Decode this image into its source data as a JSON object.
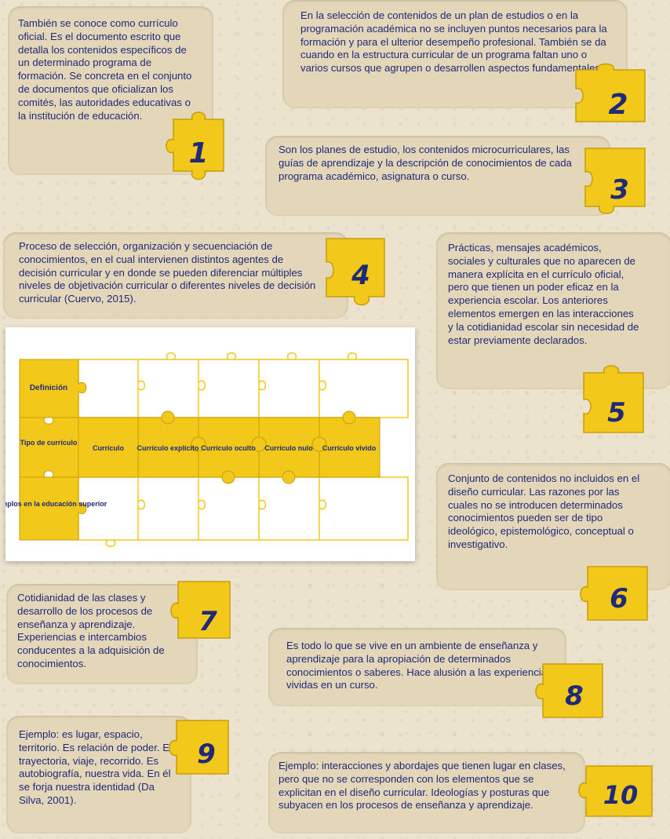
{
  "colors": {
    "card": "#e3d6b9",
    "piece": "#f2c81b",
    "piece_edge": "#c89e0a",
    "text": "#1f2a78",
    "grid_line": "#f2c81b"
  },
  "cards": [
    {
      "number": "1",
      "text": "También se conoce como currículo oficial. Es el documento escrito que detalla los contenidos específicos de un determinado programa de formación. Se concreta en el conjunto de documentos que oficializan los comités, las autoridades educativas o la institución de educación."
    },
    {
      "number": "2",
      "text": "En la selección de contenidos de un plan de estudios o en la programación académica no se incluyen puntos necesarios para la formación y para el ulterior desempeño profesional. También se da cuando en la estructura curricular de un programa faltan uno o varios cursos que agrupen o desarrollen aspectos fundamentales."
    },
    {
      "number": "3",
      "text": "Son los planes de estudio, los contenidos microcurriculares, las guías de aprendizaje y la descripción de conocimientos de cada programa académico, asignatura o curso."
    },
    {
      "number": "4",
      "text": "Proceso de selección, organización y secuenciación de conocimientos, en el cual intervienen distintos agentes de decisión curricular y en donde se pueden diferenciar múltiples niveles de objetivación curricular o diferentes niveles de decisión curricular (Cuervo, 2015)."
    },
    {
      "number": "5",
      "text": "Prácticas, mensajes académicos, sociales y culturales que no aparecen de manera explícita en el currículo oficial, pero que tienen un poder eficaz en la experiencia escolar. Los anteriores elementos emergen en las interacciones y la cotidianidad escolar sin necesidad de estar previamente declarados."
    },
    {
      "number": "6",
      "text": "Conjunto de contenidos no incluidos en el diseño curricular. Las razones por las cuales no se introducen determinados conocimientos pueden ser de tipo ideológico, epistemológico, conceptual o investigativo."
    },
    {
      "number": "7",
      "text": "Cotidianidad de las clases y desarrollo de los procesos de enseñanza y aprendizaje. Experiencias e intercambios conducentes a la adquisición de conocimientos."
    },
    {
      "number": "8",
      "text": "Es todo lo que se vive en un ambiente de enseñanza y aprendizaje para la apropiación de determinados conocimientos o saberes. Hace alusión a las experiencias vividas en un curso."
    },
    {
      "number": "9",
      "text": "Ejemplo: es lugar, espacio, territorio. Es relación de poder. Es trayectoria, viaje, recorrido. Es autobiografía, nuestra vida. En él se forja nuestra identidad (Da Silva, 2001)."
    },
    {
      "number": "10",
      "text": "Ejemplo: interacciones y abordajes que tienen lugar en clases, pero que no se corresponden con los elementos que se explicitan en el diseño curricular. Ideologías y posturas que subyacen en los procesos de enseñanza y aprendizaje."
    }
  ],
  "grid": {
    "row_labels": [
      "Definición",
      "Tipo de currículo",
      "Ejemplos en la educación superior"
    ],
    "types": [
      "Currículo",
      "Currículo explícito",
      "Currículo oculto",
      "Currículo nulo",
      "Currículo vivido"
    ]
  }
}
